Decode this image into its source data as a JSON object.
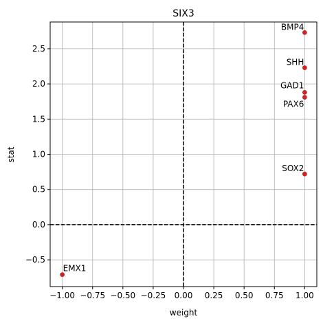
{
  "chart_data": {
    "type": "scatter",
    "title": "SIX3",
    "xlabel": "weight",
    "ylabel": "stat",
    "xlim": [
      -1.1,
      1.1
    ],
    "ylim": [
      -0.88,
      2.88
    ],
    "xticks": [
      -1.0,
      -0.75,
      -0.5,
      -0.25,
      0.0,
      0.25,
      0.5,
      0.75,
      1.0
    ],
    "xtick_labels": [
      "−1.00",
      "−0.75",
      "−0.50",
      "−0.25",
      "0.00",
      "0.25",
      "0.50",
      "0.75",
      "1.00"
    ],
    "yticks": [
      -0.5,
      0.0,
      0.5,
      1.0,
      1.5,
      2.0,
      2.5
    ],
    "ytick_labels": [
      "−0.5",
      "0.0",
      "0.5",
      "1.0",
      "1.5",
      "2.0",
      "2.5"
    ],
    "grid": true,
    "reference_lines": {
      "x": 0,
      "y": 0,
      "style": "dashed"
    },
    "point_color": "#c62828",
    "points": [
      {
        "label": "BMP4",
        "x": 1.0,
        "y": 2.73,
        "label_side": "left",
        "label_dy": -4
      },
      {
        "label": "SHH",
        "x": 1.0,
        "y": 2.23,
        "label_side": "left",
        "label_dy": -4
      },
      {
        "label": "GAD1",
        "x": 1.0,
        "y": 1.88,
        "label_side": "left",
        "label_dy": -6
      },
      {
        "label": "PAX6",
        "x": 1.0,
        "y": 1.81,
        "label_side": "left",
        "label_dy": 14
      },
      {
        "label": "SOX2",
        "x": 1.0,
        "y": 0.72,
        "label_side": "left",
        "label_dy": -4
      },
      {
        "label": "EMX1",
        "x": -1.0,
        "y": -0.71,
        "label_side": "right",
        "label_dy": -5
      }
    ]
  }
}
